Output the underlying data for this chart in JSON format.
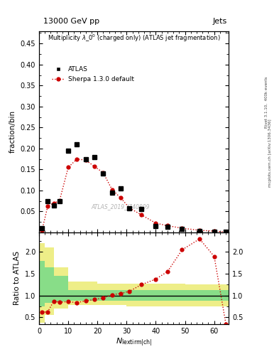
{
  "title_top": "13000 GeV pp",
  "title_right": "Jets",
  "main_title": "Multiplicity $\\lambda\\_0^0$ (charged only) (ATLAS jet fragmentation)",
  "ylabel_main": "fraction/bin",
  "ylabel_ratio": "Ratio to ATLAS",
  "right_label1": "Rivet 3.1.10,  400k events",
  "right_label2": "mcplots.cern.ch [arXiv:1306.3436]",
  "watermark": "ATLAS_2019_I740809",
  "atlas_x": [
    1,
    3,
    5,
    7,
    10,
    13,
    16,
    19,
    22,
    25,
    28,
    31,
    35,
    40,
    44,
    49,
    55,
    60,
    64
  ],
  "atlas_y": [
    0.01,
    0.075,
    0.065,
    0.075,
    0.195,
    0.21,
    0.175,
    0.18,
    0.14,
    0.095,
    0.105,
    0.058,
    0.055,
    0.015,
    0.013,
    0.008,
    0.004,
    0.002,
    0.001
  ],
  "sherpa_x": [
    1,
    3,
    5,
    7,
    10,
    13,
    16,
    19,
    22,
    25,
    28,
    31,
    35,
    40,
    44,
    49,
    55,
    60,
    64
  ],
  "sherpa_y": [
    0.005,
    0.063,
    0.07,
    0.075,
    0.155,
    0.175,
    0.172,
    0.157,
    0.142,
    0.102,
    0.082,
    0.058,
    0.042,
    0.022,
    0.016,
    0.01,
    0.005,
    0.003,
    0.001
  ],
  "ratio_x": [
    1,
    3,
    5,
    7,
    10,
    13,
    16,
    19,
    22,
    25,
    28,
    31,
    35,
    40,
    44,
    49,
    55,
    60,
    64
  ],
  "ratio_y": [
    0.62,
    0.63,
    0.87,
    0.85,
    0.86,
    0.84,
    0.88,
    0.91,
    0.95,
    1.02,
    1.05,
    1.1,
    1.25,
    1.38,
    1.55,
    2.05,
    2.3,
    1.9,
    0.35
  ],
  "band_x_edges": [
    0,
    2,
    5,
    10,
    20,
    30,
    40,
    50,
    58,
    65
  ],
  "green_low": [
    0.75,
    0.83,
    0.87,
    0.88,
    0.88,
    0.88,
    0.88,
    0.88,
    0.88,
    0.88
  ],
  "green_high": [
    1.8,
    1.65,
    1.45,
    1.12,
    1.12,
    1.12,
    1.12,
    1.12,
    1.12,
    1.12
  ],
  "yellow_low": [
    0.38,
    0.55,
    0.7,
    0.78,
    0.78,
    0.75,
    0.75,
    0.75,
    0.75,
    0.75
  ],
  "yellow_high": [
    2.2,
    2.1,
    1.65,
    1.32,
    1.28,
    1.28,
    1.28,
    1.25,
    1.25,
    1.25
  ],
  "xlim": [
    0,
    65
  ],
  "ylim_main": [
    0,
    0.48
  ],
  "ylim_ratio": [
    0.35,
    2.45
  ],
  "yticks_main": [
    0.05,
    0.1,
    0.15,
    0.2,
    0.25,
    0.3,
    0.35,
    0.4,
    0.45
  ],
  "yticks_ratio": [
    0.5,
    1.0,
    1.5,
    2.0
  ],
  "xticks": [
    0,
    10,
    20,
    30,
    40,
    50,
    60
  ],
  "atlas_color": "#000000",
  "sherpa_color": "#cc0000",
  "green_color": "#88dd88",
  "yellow_color": "#eeee88",
  "bg_color": "#ffffff"
}
